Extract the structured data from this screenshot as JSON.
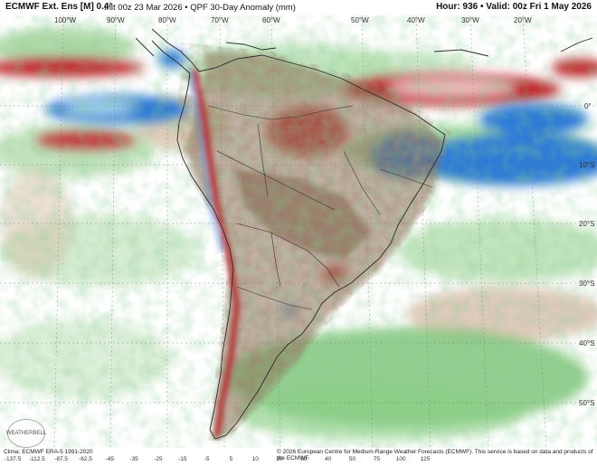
{
  "header": {
    "model": "ECMWF Ext. Ens [M] 0.4°",
    "init": "Init 00z 23 Mar 2026",
    "separator": "•",
    "field": "QPF 30-Day Anomaly (mm)",
    "hour": "Hour: 936",
    "valid": "Valid: 00z Fri 1 May 2026"
  },
  "map": {
    "lon_labels": [
      "100°W",
      "90°W",
      "80°W",
      "70°W",
      "60°W",
      "50°W",
      "40°W",
      "30°W",
      "20°W"
    ],
    "lat_labels": [
      "0°",
      "10°S",
      "20°S",
      "30°S",
      "40°S",
      "50°S"
    ]
  },
  "footer": {
    "clim": "Clima: ECMWF ERA-5 1991-2020",
    "copyright": "© 2026 European Centre for Medium-Range Weather Forecasts (ECMWF). This service is based on data and products of the ECMWF.",
    "logo_text": "WEATHERBELL"
  },
  "legend": {
    "ticks": [
      "-137.5",
      "-112.5",
      "-87.5",
      "-62.5",
      "-45",
      "-35",
      "-25",
      "-15",
      "-5",
      "5",
      "10",
      "20",
      "30",
      "40",
      "50",
      "75",
      "100",
      "125"
    ],
    "colors": {
      "dry_strong": "#b32025",
      "dry": "#e07070",
      "dry_light": "#c9a98a",
      "brown": "#8b6a4e",
      "wet_light": "#a7d7a0",
      "wet": "#4caf50",
      "wet_strong": "#2f7bd6",
      "wet_max": "#9fd8ef"
    }
  }
}
